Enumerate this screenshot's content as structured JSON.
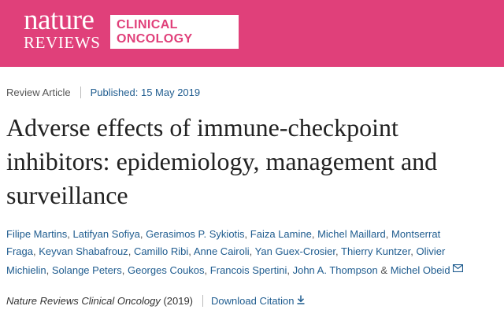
{
  "header": {
    "logo_nature": "nature",
    "logo_reviews": "REVIEWS",
    "journal_line1": "CLINICAL",
    "journal_line2": "ONCOLOGY",
    "brand_color": "#e0407a"
  },
  "meta": {
    "article_type": "Review Article",
    "published": "Published: 15 May 2019"
  },
  "article": {
    "title_line1": "Adverse effects of immune-checkpoint",
    "title_line2": "inhibitors: epidemiology, management and",
    "title_line3": "surveillance"
  },
  "authors": {
    "line1": [
      "Filipe Martins",
      "Latifyan Sofiya",
      "Gerasimos P. Sykiotis",
      "Faiza Lamine",
      "Michel Maillard",
      "Montserrat"
    ],
    "line2": [
      "Fraga",
      "Keyvan Shabafrouz",
      "Camillo Ribi",
      "Anne Cairoli",
      "Yan Guex-Crosier",
      "Thierry Kuntzer",
      "Olivier"
    ],
    "line3": [
      "Michielin",
      "Solange Peters",
      "Georges Coukos",
      "Francois Spertini",
      "John A. Thompson"
    ],
    "last_author": "Michel Obeid",
    "comma": ",",
    "ampersand": "&",
    "mail_icon": "envelope-icon"
  },
  "citation": {
    "journal": "Nature Reviews Clinical Oncology",
    "year": "(2019)",
    "download_label": "Download Citation",
    "download_icon": "download-arrow-icon",
    "link_color": "#1f5c8f"
  }
}
